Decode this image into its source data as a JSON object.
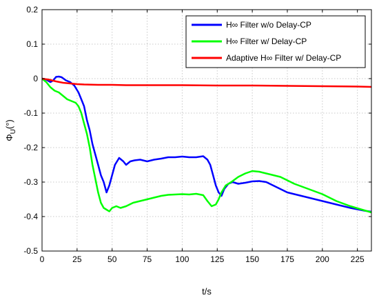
{
  "chart_data": {
    "type": "line",
    "title": "",
    "xlabel": "t/s",
    "ylabel_main": "Φ",
    "ylabel_sub": "U",
    "ylabel_unit": "(°)",
    "xlim": [
      0,
      235
    ],
    "ylim": [
      -0.5,
      0.2
    ],
    "xticks": [
      0,
      25,
      50,
      75,
      100,
      125,
      150,
      175,
      200,
      225
    ],
    "yticks": [
      0.2,
      0.1,
      0,
      -0.1,
      -0.2,
      -0.3,
      -0.4,
      -0.5
    ],
    "grid": true,
    "legend_position": "top-right",
    "series": [
      {
        "name": "H∞ Filter w/o Delay-CP",
        "color": "#0000ff",
        "points": [
          [
            0,
            0
          ],
          [
            3,
            -0.003
          ],
          [
            6,
            -0.01
          ],
          [
            8,
            -0.005
          ],
          [
            10,
            0.005
          ],
          [
            12,
            0.006
          ],
          [
            14,
            0.004
          ],
          [
            17,
            -0.005
          ],
          [
            20,
            -0.01
          ],
          [
            23,
            -0.02
          ],
          [
            26,
            -0.04
          ],
          [
            28,
            -0.06
          ],
          [
            30,
            -0.08
          ],
          [
            32,
            -0.12
          ],
          [
            34,
            -0.15
          ],
          [
            36,
            -0.19
          ],
          [
            38,
            -0.22
          ],
          [
            40,
            -0.25
          ],
          [
            42,
            -0.28
          ],
          [
            44,
            -0.3
          ],
          [
            46,
            -0.33
          ],
          [
            48,
            -0.31
          ],
          [
            50,
            -0.28
          ],
          [
            52,
            -0.25
          ],
          [
            55,
            -0.23
          ],
          [
            58,
            -0.24
          ],
          [
            60,
            -0.25
          ],
          [
            63,
            -0.24
          ],
          [
            66,
            -0.237
          ],
          [
            70,
            -0.235
          ],
          [
            75,
            -0.24
          ],
          [
            80,
            -0.235
          ],
          [
            85,
            -0.232
          ],
          [
            90,
            -0.228
          ],
          [
            95,
            -0.228
          ],
          [
            100,
            -0.226
          ],
          [
            105,
            -0.228
          ],
          [
            110,
            -0.228
          ],
          [
            115,
            -0.225
          ],
          [
            118,
            -0.235
          ],
          [
            120,
            -0.25
          ],
          [
            122,
            -0.28
          ],
          [
            124,
            -0.31
          ],
          [
            126,
            -0.33
          ],
          [
            128,
            -0.34
          ],
          [
            130,
            -0.32
          ],
          [
            133,
            -0.305
          ],
          [
            136,
            -0.3
          ],
          [
            140,
            -0.305
          ],
          [
            145,
            -0.302
          ],
          [
            150,
            -0.298
          ],
          [
            155,
            -0.297
          ],
          [
            160,
            -0.3
          ],
          [
            165,
            -0.31
          ],
          [
            170,
            -0.32
          ],
          [
            175,
            -0.33
          ],
          [
            180,
            -0.335
          ],
          [
            190,
            -0.345
          ],
          [
            200,
            -0.355
          ],
          [
            210,
            -0.365
          ],
          [
            220,
            -0.375
          ],
          [
            230,
            -0.383
          ],
          [
            235,
            -0.386
          ]
        ]
      },
      {
        "name": "H∞ Filter w/ Delay-CP",
        "color": "#00ff00",
        "points": [
          [
            0,
            0
          ],
          [
            3,
            -0.01
          ],
          [
            6,
            -0.025
          ],
          [
            9,
            -0.035
          ],
          [
            12,
            -0.04
          ],
          [
            15,
            -0.05
          ],
          [
            18,
            -0.06
          ],
          [
            21,
            -0.065
          ],
          [
            24,
            -0.07
          ],
          [
            26,
            -0.08
          ],
          [
            28,
            -0.1
          ],
          [
            30,
            -0.13
          ],
          [
            32,
            -0.16
          ],
          [
            34,
            -0.2
          ],
          [
            36,
            -0.25
          ],
          [
            38,
            -0.29
          ],
          [
            40,
            -0.33
          ],
          [
            42,
            -0.36
          ],
          [
            44,
            -0.375
          ],
          [
            46,
            -0.38
          ],
          [
            48,
            -0.385
          ],
          [
            50,
            -0.375
          ],
          [
            53,
            -0.37
          ],
          [
            56,
            -0.375
          ],
          [
            60,
            -0.37
          ],
          [
            65,
            -0.36
          ],
          [
            70,
            -0.355
          ],
          [
            75,
            -0.35
          ],
          [
            80,
            -0.345
          ],
          [
            85,
            -0.34
          ],
          [
            90,
            -0.337
          ],
          [
            95,
            -0.336
          ],
          [
            100,
            -0.335
          ],
          [
            105,
            -0.336
          ],
          [
            110,
            -0.334
          ],
          [
            115,
            -0.338
          ],
          [
            118,
            -0.355
          ],
          [
            121,
            -0.37
          ],
          [
            124,
            -0.365
          ],
          [
            126,
            -0.35
          ],
          [
            128,
            -0.33
          ],
          [
            131,
            -0.31
          ],
          [
            135,
            -0.3
          ],
          [
            140,
            -0.285
          ],
          [
            145,
            -0.275
          ],
          [
            150,
            -0.268
          ],
          [
            155,
            -0.27
          ],
          [
            160,
            -0.275
          ],
          [
            165,
            -0.28
          ],
          [
            170,
            -0.285
          ],
          [
            175,
            -0.295
          ],
          [
            180,
            -0.305
          ],
          [
            190,
            -0.32
          ],
          [
            200,
            -0.335
          ],
          [
            210,
            -0.355
          ],
          [
            220,
            -0.37
          ],
          [
            230,
            -0.382
          ],
          [
            235,
            -0.388
          ]
        ]
      },
      {
        "name": "Adaptive H∞ Filter w/ Delay-CP",
        "color": "#ff0000",
        "points": [
          [
            0,
            0
          ],
          [
            5,
            -0.003
          ],
          [
            10,
            -0.008
          ],
          [
            15,
            -0.012
          ],
          [
            20,
            -0.014
          ],
          [
            25,
            -0.016
          ],
          [
            30,
            -0.017
          ],
          [
            40,
            -0.018
          ],
          [
            50,
            -0.018
          ],
          [
            60,
            -0.019
          ],
          [
            75,
            -0.019
          ],
          [
            100,
            -0.019
          ],
          [
            125,
            -0.02
          ],
          [
            150,
            -0.02
          ],
          [
            175,
            -0.021
          ],
          [
            200,
            -0.022
          ],
          [
            225,
            -0.023
          ],
          [
            235,
            -0.024
          ]
        ]
      }
    ]
  }
}
